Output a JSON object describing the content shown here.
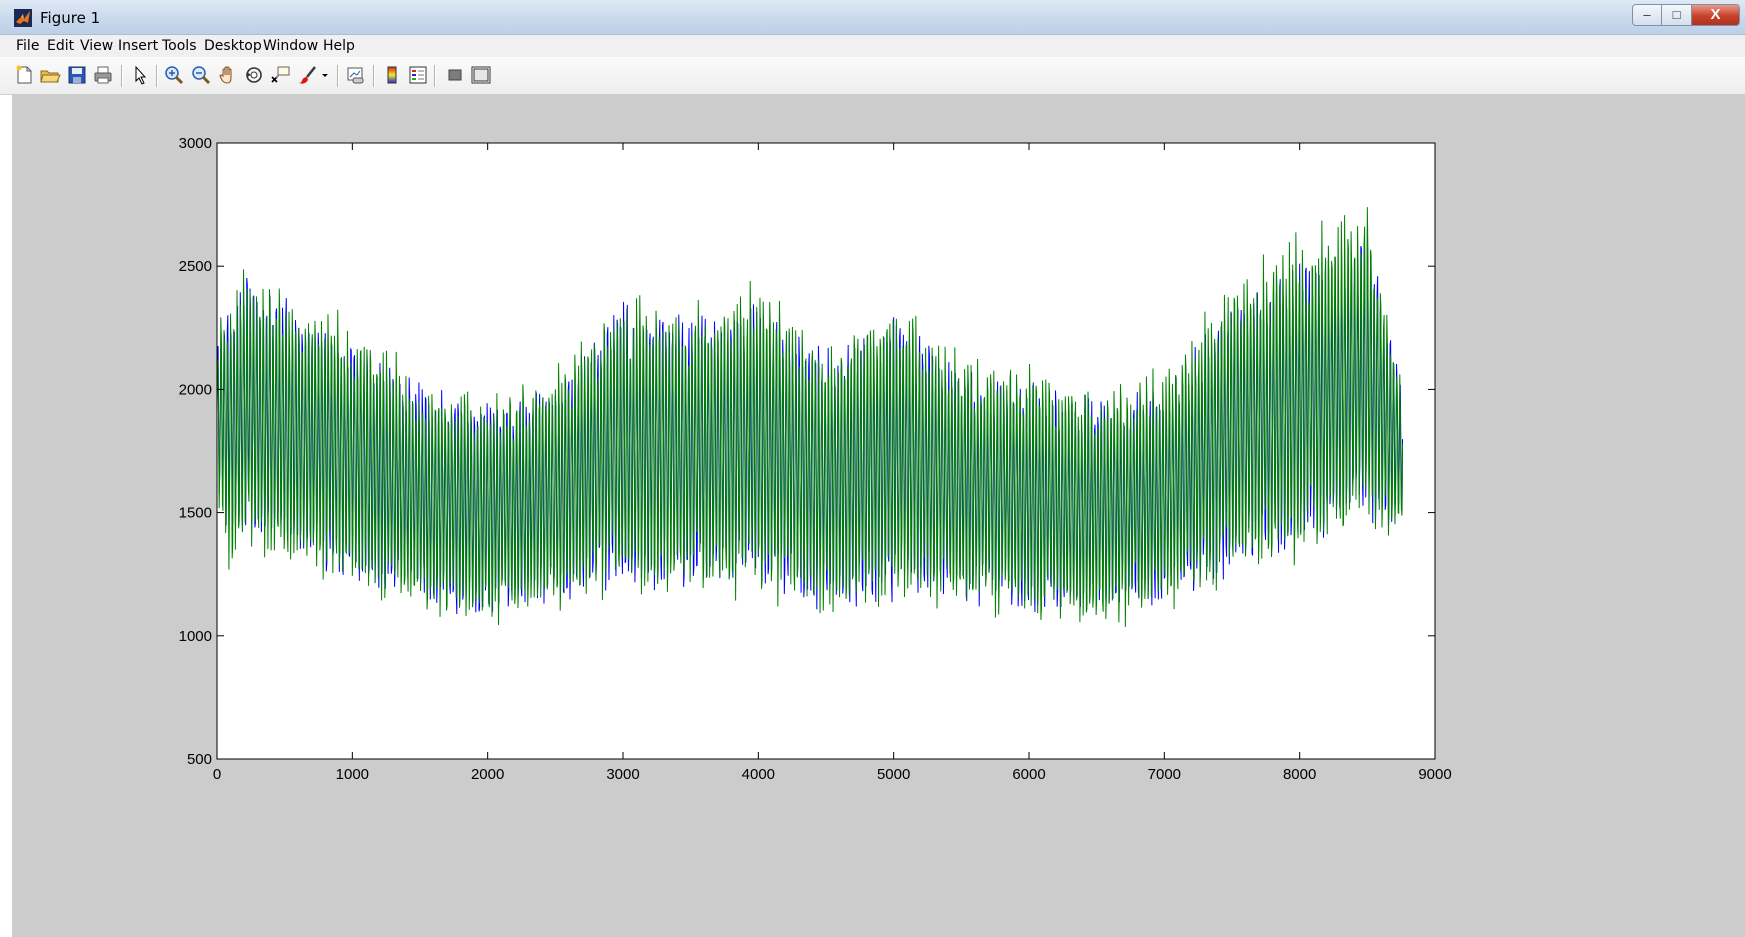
{
  "window": {
    "title": "Figure 1",
    "controls": {
      "minimize": "–",
      "maximize": "□",
      "close": "X"
    }
  },
  "menu": {
    "items": [
      "File",
      "Edit",
      "View",
      "Insert",
      "Tools",
      "Desktop",
      "Window",
      "Help"
    ]
  },
  "toolbar": {
    "buttons": [
      "new-figure-icon",
      "open-file-icon",
      "save-icon",
      "print-icon",
      "edit-plot-icon",
      "zoom-in-icon",
      "zoom-out-icon",
      "pan-icon",
      "rotate-3d-icon",
      "data-cursor-icon",
      "brush-icon",
      "link-plot-icon",
      "colorbar-icon",
      "legend-icon",
      "hide-plot-tools-icon",
      "show-plot-tools-icon"
    ]
  },
  "colors": {
    "figure_background": "#cccccc",
    "axes_background": "#ffffff",
    "series_1": "#0000ff",
    "series_2": "#008000"
  },
  "chart_data": {
    "type": "line",
    "title": "",
    "xlabel": "",
    "ylabel": "",
    "xlim": [
      0,
      9000
    ],
    "ylim": [
      500,
      3000
    ],
    "xticks": [
      0,
      1000,
      2000,
      3000,
      4000,
      5000,
      6000,
      7000,
      8000,
      9000
    ],
    "yticks": [
      500,
      1000,
      1500,
      2000,
      2500,
      3000
    ],
    "grid": false,
    "legend": "none",
    "x_extent": [
      0,
      8760
    ],
    "series_style": "two overlapping oscillating series (blue drawn first, green on top) with daily cycle",
    "series": [
      {
        "color": "#0000ff",
        "envelope": [
          {
            "x": 0,
            "min": 1500,
            "max": 2300
          },
          {
            "x": 100,
            "min": 1300,
            "max": 2450
          },
          {
            "x": 200,
            "min": 1300,
            "max": 2550
          },
          {
            "x": 500,
            "min": 1250,
            "max": 2450
          },
          {
            "x": 1000,
            "min": 1150,
            "max": 2300
          },
          {
            "x": 1500,
            "min": 1050,
            "max": 2100
          },
          {
            "x": 2000,
            "min": 1000,
            "max": 2050
          },
          {
            "x": 2500,
            "min": 1050,
            "max": 2100
          },
          {
            "x": 3000,
            "min": 1100,
            "max": 2450
          },
          {
            "x": 3500,
            "min": 1100,
            "max": 2400
          },
          {
            "x": 4000,
            "min": 1100,
            "max": 2450
          },
          {
            "x": 4500,
            "min": 1000,
            "max": 2250
          },
          {
            "x": 5000,
            "min": 1050,
            "max": 2400
          },
          {
            "x": 5500,
            "min": 1050,
            "max": 2200
          },
          {
            "x": 6000,
            "min": 1000,
            "max": 2100
          },
          {
            "x": 6500,
            "min": 1000,
            "max": 2050
          },
          {
            "x": 7000,
            "min": 1050,
            "max": 2100
          },
          {
            "x": 7500,
            "min": 1150,
            "max": 2450
          },
          {
            "x": 8000,
            "min": 1250,
            "max": 2600
          },
          {
            "x": 8500,
            "min": 1350,
            "max": 2750
          },
          {
            "x": 8760,
            "min": 1400,
            "max": 2100
          }
        ]
      },
      {
        "color": "#008000",
        "envelope": [
          {
            "x": 0,
            "min": 1500,
            "max": 2300
          },
          {
            "x": 100,
            "min": 1150,
            "max": 2450
          },
          {
            "x": 200,
            "min": 1250,
            "max": 2580
          },
          {
            "x": 500,
            "min": 1200,
            "max": 2450
          },
          {
            "x": 1000,
            "min": 1100,
            "max": 2350
          },
          {
            "x": 1500,
            "min": 1030,
            "max": 2100
          },
          {
            "x": 2000,
            "min": 980,
            "max": 2050
          },
          {
            "x": 2500,
            "min": 1030,
            "max": 2150
          },
          {
            "x": 3000,
            "min": 1080,
            "max": 2480
          },
          {
            "x": 3500,
            "min": 1080,
            "max": 2420
          },
          {
            "x": 4000,
            "min": 1080,
            "max": 2550
          },
          {
            "x": 4500,
            "min": 990,
            "max": 2250
          },
          {
            "x": 5000,
            "min": 1030,
            "max": 2500
          },
          {
            "x": 5500,
            "min": 1030,
            "max": 2200
          },
          {
            "x": 6000,
            "min": 980,
            "max": 2200
          },
          {
            "x": 6500,
            "min": 970,
            "max": 2050
          },
          {
            "x": 7000,
            "min": 1030,
            "max": 2150
          },
          {
            "x": 7500,
            "min": 1130,
            "max": 2550
          },
          {
            "x": 8000,
            "min": 1230,
            "max": 2700
          },
          {
            "x": 8500,
            "min": 1330,
            "max": 2850
          },
          {
            "x": 8760,
            "min": 1350,
            "max": 2050
          }
        ]
      }
    ]
  }
}
